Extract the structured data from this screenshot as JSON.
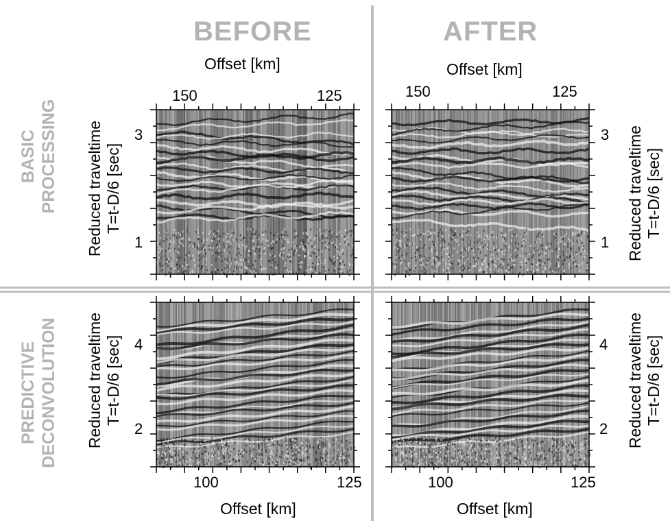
{
  "columns": {
    "before": "BEFORE",
    "after": "AFTER"
  },
  "rows": {
    "basic_line1": "BASIC",
    "basic_line2": "PROCESSING",
    "decon_line1": "PREDICTIVE",
    "decon_line2": "DECONVOLUTION"
  },
  "axes": {
    "offset_label": "Offset [km]",
    "ylabel_line1": "Reduced traveltime",
    "ylabel_line2": "T=t-D/6 [sec]"
  },
  "ticks": {
    "top_x": [
      "150",
      "125"
    ],
    "top_y": [
      "3",
      "1"
    ],
    "bottom_x": [
      "100",
      "125"
    ],
    "bottom_y": [
      "4",
      "2"
    ]
  },
  "colors": {
    "heading_gray": "#b3b3b3",
    "divider_gray": "#bdbdbd"
  }
}
